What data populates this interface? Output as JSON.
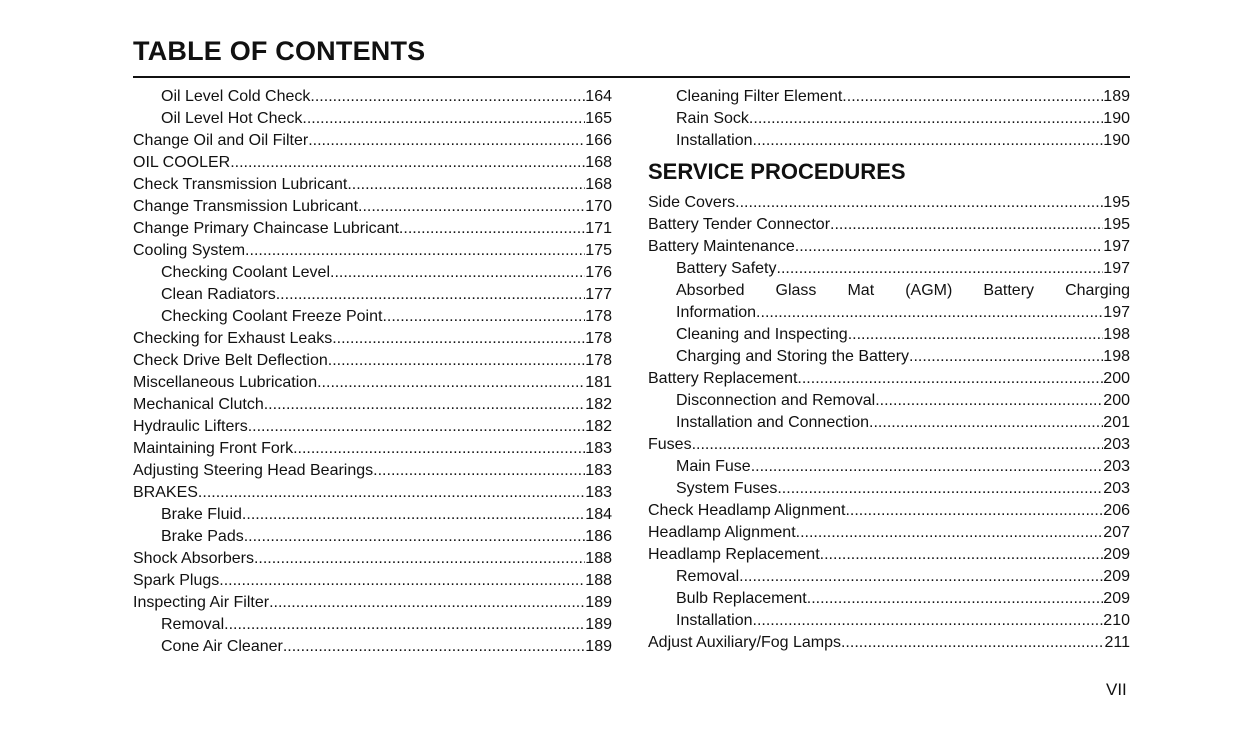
{
  "title": "TABLE OF CONTENTS",
  "left_column": [
    {
      "label": "Oil Level Cold Check",
      "page": "164",
      "indent": true
    },
    {
      "label": "Oil Level Hot Check",
      "page": "165",
      "indent": true
    },
    {
      "label": "Change Oil and Oil Filter",
      "page": "166",
      "indent": false
    },
    {
      "label": "OIL COOLER",
      "page": "168",
      "indent": false
    },
    {
      "label": "Check Transmission Lubricant",
      "page": "168",
      "indent": false
    },
    {
      "label": "Change Transmission Lubricant",
      "page": "170",
      "indent": false
    },
    {
      "label": "Change Primary Chaincase Lubricant",
      "page": "171",
      "indent": false
    },
    {
      "label": "Cooling System",
      "page": "175",
      "indent": false
    },
    {
      "label": "Checking Coolant Level",
      "page": "176",
      "indent": true
    },
    {
      "label": "Clean Radiators",
      "page": "177",
      "indent": true
    },
    {
      "label": "Checking Coolant Freeze Point",
      "page": "178",
      "indent": true
    },
    {
      "label": "Checking for Exhaust Leaks",
      "page": "178",
      "indent": false
    },
    {
      "label": "Check Drive Belt Deflection",
      "page": "178",
      "indent": false
    },
    {
      "label": "Miscellaneous Lubrication",
      "page": "181",
      "indent": false
    },
    {
      "label": "Mechanical Clutch",
      "page": "182",
      "indent": false
    },
    {
      "label": "Hydraulic Lifters",
      "page": "182",
      "indent": false
    },
    {
      "label": "Maintaining Front Fork",
      "page": "183",
      "indent": false
    },
    {
      "label": "Adjusting Steering Head Bearings",
      "page": "183",
      "indent": false
    },
    {
      "label": "BRAKES",
      "page": "183",
      "indent": false
    },
    {
      "label": "Brake Fluid",
      "page": "184",
      "indent": true
    },
    {
      "label": "Brake Pads",
      "page": "186",
      "indent": true
    },
    {
      "label": "Shock Absorbers",
      "page": "188",
      "indent": false
    },
    {
      "label": "Spark Plugs",
      "page": "188",
      "indent": false
    },
    {
      "label": "Inspecting Air Filter",
      "page": "189",
      "indent": false
    },
    {
      "label": "Removal",
      "page": "189",
      "indent": true
    },
    {
      "label": "Cone Air Cleaner",
      "page": "189",
      "indent": true
    }
  ],
  "right_column": [
    {
      "label": "Cleaning Filter Element",
      "page": "189",
      "indent": true
    },
    {
      "label": "Rain Sock",
      "page": "190",
      "indent": true
    },
    {
      "label": "Installation",
      "page": "190",
      "indent": true
    },
    {
      "heading": "SERVICE PROCEDURES"
    },
    {
      "label": "Side Covers",
      "page": "195",
      "indent": false
    },
    {
      "label": "Battery Tender Connector",
      "page": "195",
      "indent": false
    },
    {
      "label": "Battery Maintenance",
      "page": "197",
      "indent": false
    },
    {
      "label": "Battery Safety",
      "page": "197",
      "indent": true
    },
    {
      "label": "Absorbed Glass Mat (AGM) Battery Charging",
      "label_cont": "Information",
      "page": "197",
      "indent": true
    },
    {
      "label": "Cleaning and Inspecting",
      "page": "198",
      "indent": true
    },
    {
      "label": "Charging and Storing the Battery",
      "page": "198",
      "indent": true
    },
    {
      "label": "Battery Replacement",
      "page": "200",
      "indent": false
    },
    {
      "label": "Disconnection and Removal",
      "page": "200",
      "indent": true
    },
    {
      "label": "Installation and Connection",
      "page": "201",
      "indent": true
    },
    {
      "label": "Fuses",
      "page": "203",
      "indent": false
    },
    {
      "label": "Main Fuse",
      "page": "203",
      "indent": true
    },
    {
      "label": "System Fuses",
      "page": "203",
      "indent": true
    },
    {
      "label": "Check Headlamp Alignment",
      "page": "206",
      "indent": false
    },
    {
      "label": "Headlamp Alignment",
      "page": "207",
      "indent": false
    },
    {
      "label": "Headlamp Replacement",
      "page": "209",
      "indent": false
    },
    {
      "label": "Removal",
      "page": "209",
      "indent": true
    },
    {
      "label": "Bulb Replacement",
      "page": "209",
      "indent": true
    },
    {
      "label": "Installation",
      "page": "210",
      "indent": true
    },
    {
      "label": "Adjust Auxiliary/Fog Lamps",
      "page": "211",
      "indent": false
    }
  ],
  "page_number": "VII"
}
